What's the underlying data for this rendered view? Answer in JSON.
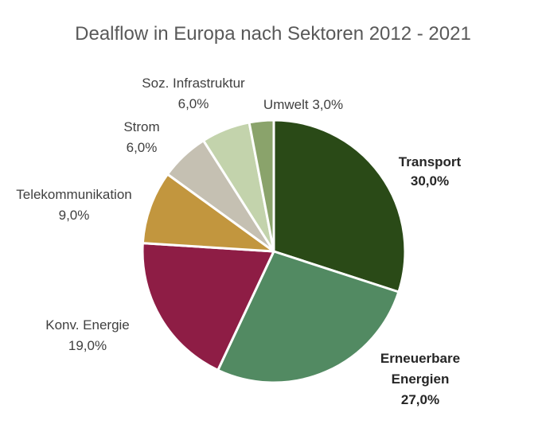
{
  "chart_data": {
    "type": "pie",
    "title": "Dealflow in Europa nach Sektoren 2012 - 2021",
    "slices": [
      {
        "name": "Transport",
        "value": 30.0,
        "label_lines": [
          "Transport",
          "30,0%"
        ],
        "color": "#2a4a17",
        "bold": true
      },
      {
        "name": "Erneuerbare Energien",
        "value": 27.0,
        "label_lines": [
          "Erneuerbare",
          "Energien",
          "27,0%"
        ],
        "color": "#528a62",
        "bold": true
      },
      {
        "name": "Konv. Energie",
        "value": 19.0,
        "label_lines": [
          "Konv. Energie",
          "19,0%"
        ],
        "color": "#8e1d45",
        "bold": false
      },
      {
        "name": "Telekommunikation",
        "value": 9.0,
        "label_lines": [
          "Telekommunikation",
          "9,0%"
        ],
        "color": "#c2963e",
        "bold": false
      },
      {
        "name": "Strom",
        "value": 6.0,
        "label_lines": [
          "Strom",
          "6,0%"
        ],
        "color": "#c5c0b2",
        "bold": false
      },
      {
        "name": "Soz. Infrastruktur",
        "value": 6.0,
        "label_lines": [
          "Soz. Infrastruktur",
          "6,0%"
        ],
        "color": "#c3d3ac",
        "bold": false
      },
      {
        "name": "Umwelt",
        "value": 3.0,
        "label_lines": [
          "Umwelt  3,0%"
        ],
        "color": "#8aa36b",
        "bold": false
      }
    ]
  }
}
